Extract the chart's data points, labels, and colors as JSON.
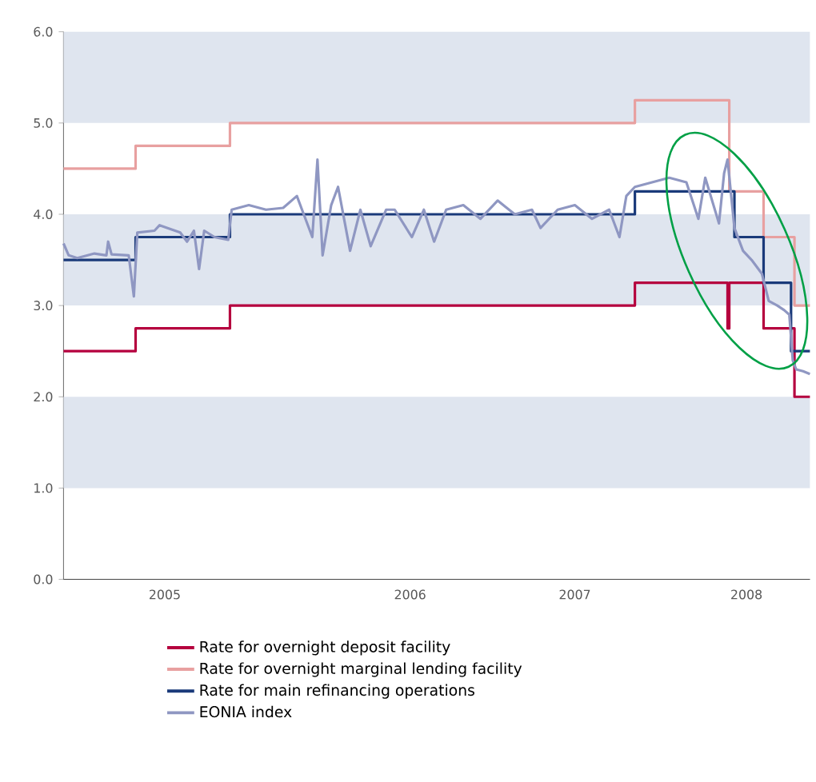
{
  "chart_data": {
    "type": "step",
    "xlim": [
      2004.02,
      2008.37
    ],
    "xticks": [
      {
        "value": 2004.61,
        "label": "2005"
      },
      {
        "value": 2006.04,
        "label": "2006"
      },
      {
        "value": 2007.0,
        "label": "2007"
      },
      {
        "value": 2008.0,
        "label": "2008"
      }
    ],
    "ylim": [
      0,
      6
    ],
    "yticks": [
      {
        "value": 0,
        "label": "0.0"
      },
      {
        "value": 1,
        "label": "1.0"
      },
      {
        "value": 2,
        "label": "2.0"
      },
      {
        "value": 3,
        "label": "3.0"
      },
      {
        "value": 4,
        "label": "4.0"
      },
      {
        "value": 5,
        "label": "5.0"
      },
      {
        "value": 6,
        "label": "6.0"
      }
    ],
    "bands": [
      {
        "axis": "y",
        "from": 1,
        "to": 2,
        "color": "#dfe5ef"
      },
      {
        "axis": "y",
        "from": 3,
        "to": 4,
        "color": "#dfe5ef"
      },
      {
        "axis": "y",
        "from": 5,
        "to": 6,
        "color": "#dfe5ef"
      }
    ],
    "legend": "bottom",
    "series": [
      {
        "name": "Rate for overnight deposit facility",
        "color": "#b5003e",
        "x": [
          2004.02,
          2004.44,
          2004.99,
          2007.35,
          2007.89,
          2007.9,
          2008.1,
          2008.28,
          2008.37
        ],
        "values": [
          2.5,
          2.75,
          3.0,
          3.25,
          2.75,
          3.25,
          2.75,
          2.0,
          2.0
        ]
      },
      {
        "name": "Rate for overnight marginal lending facility",
        "color": "#e8a0a0",
        "x": [
          2004.02,
          2004.44,
          2004.99,
          2007.35,
          2007.9,
          2008.1,
          2008.28,
          2008.37
        ],
        "values": [
          4.5,
          4.75,
          5.0,
          5.25,
          4.25,
          3.75,
          3.0,
          3.0
        ]
      },
      {
        "name": "Rate for main refinancing operations",
        "color": "#1a3a7a",
        "x": [
          2004.02,
          2004.44,
          2004.99,
          2007.35,
          2007.93,
          2008.1,
          2008.26,
          2008.37
        ],
        "values": [
          3.5,
          3.75,
          4.0,
          4.25,
          3.75,
          3.25,
          2.5,
          2.5
        ]
      },
      {
        "name": "EONIA index",
        "type": "line",
        "color": "#8f97c2",
        "x": [
          2004.02,
          2004.05,
          2004.1,
          2004.2,
          2004.27,
          2004.28,
          2004.3,
          2004.4,
          2004.43,
          2004.45,
          2004.55,
          2004.58,
          2004.7,
          2004.74,
          2004.78,
          2004.81,
          2004.84,
          2004.9,
          2004.98,
          2005.0,
          2005.1,
          2005.2,
          2005.3,
          2005.38,
          2005.42,
          2005.47,
          2005.5,
          2005.53,
          2005.58,
          2005.62,
          2005.69,
          2005.75,
          2005.81,
          2005.9,
          2005.95,
          2006.05,
          2006.12,
          2006.18,
          2006.25,
          2006.35,
          2006.45,
          2006.55,
          2006.65,
          2006.75,
          2006.8,
          2006.9,
          2007.0,
          2007.1,
          2007.2,
          2007.26,
          2007.3,
          2007.35,
          2007.45,
          2007.55,
          2007.65,
          2007.72,
          2007.76,
          2007.84,
          2007.87,
          2007.89,
          2007.93,
          2007.98,
          2008.03,
          2008.09,
          2008.13,
          2008.18,
          2008.22,
          2008.25,
          2008.27,
          2008.29,
          2008.33,
          2008.37
        ],
        "values": [
          3.68,
          3.55,
          3.52,
          3.57,
          3.55,
          3.7,
          3.56,
          3.55,
          3.1,
          3.8,
          3.82,
          3.88,
          3.8,
          3.7,
          3.82,
          3.4,
          3.82,
          3.75,
          3.72,
          4.05,
          4.1,
          4.05,
          4.07,
          4.2,
          4.0,
          3.75,
          4.6,
          3.55,
          4.1,
          4.3,
          3.6,
          4.05,
          3.65,
          4.05,
          4.05,
          3.75,
          4.05,
          3.7,
          4.05,
          4.1,
          3.95,
          4.15,
          4.0,
          4.05,
          3.85,
          4.05,
          4.1,
          3.95,
          4.05,
          3.75,
          4.2,
          4.3,
          4.35,
          4.4,
          4.35,
          3.95,
          4.4,
          3.9,
          4.45,
          4.6,
          3.85,
          3.6,
          3.5,
          3.35,
          3.05,
          3.0,
          2.95,
          2.9,
          2.4,
          2.3,
          2.28,
          2.25
        ]
      }
    ]
  }
}
